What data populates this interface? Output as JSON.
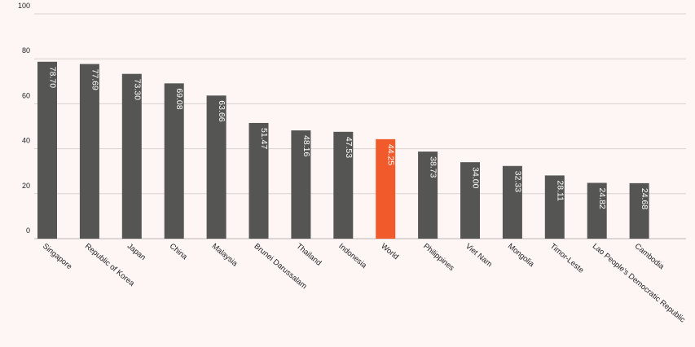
{
  "colors": {
    "background": "#fdf6f4",
    "bar": "#555553",
    "highlight": "#f15a2b",
    "grid": "#d9d2cf"
  },
  "chart_data": {
    "type": "bar",
    "title": "",
    "xlabel": "",
    "ylabel": "",
    "ylim": [
      0,
      100
    ],
    "yticks": [
      0,
      20,
      40,
      60,
      80,
      100
    ],
    "grid": true,
    "highlight_category": "World",
    "categories": [
      "Singapore",
      "Republic of Korea",
      "Japan",
      "China",
      "Malaysia",
      "Brunei Darussalam",
      "Thailand",
      "Indonesia",
      "World",
      "Philippines",
      "Viet Nam",
      "Mongolia",
      "Timor-Leste",
      "Lao People's Democratic Republic",
      "Cambodia"
    ],
    "values": [
      78.7,
      77.69,
      73.3,
      69.08,
      63.66,
      51.47,
      48.16,
      47.53,
      44.25,
      38.73,
      34.0,
      32.33,
      28.11,
      24.82,
      24.68
    ],
    "value_labels": [
      "78.70",
      "77.69",
      "73.30",
      "69.08",
      "63.66",
      "51.47",
      "48.16",
      "47.53",
      "44.25",
      "38.73",
      "34.00",
      "32.33",
      "28.11",
      "24.82",
      "24.68"
    ]
  }
}
